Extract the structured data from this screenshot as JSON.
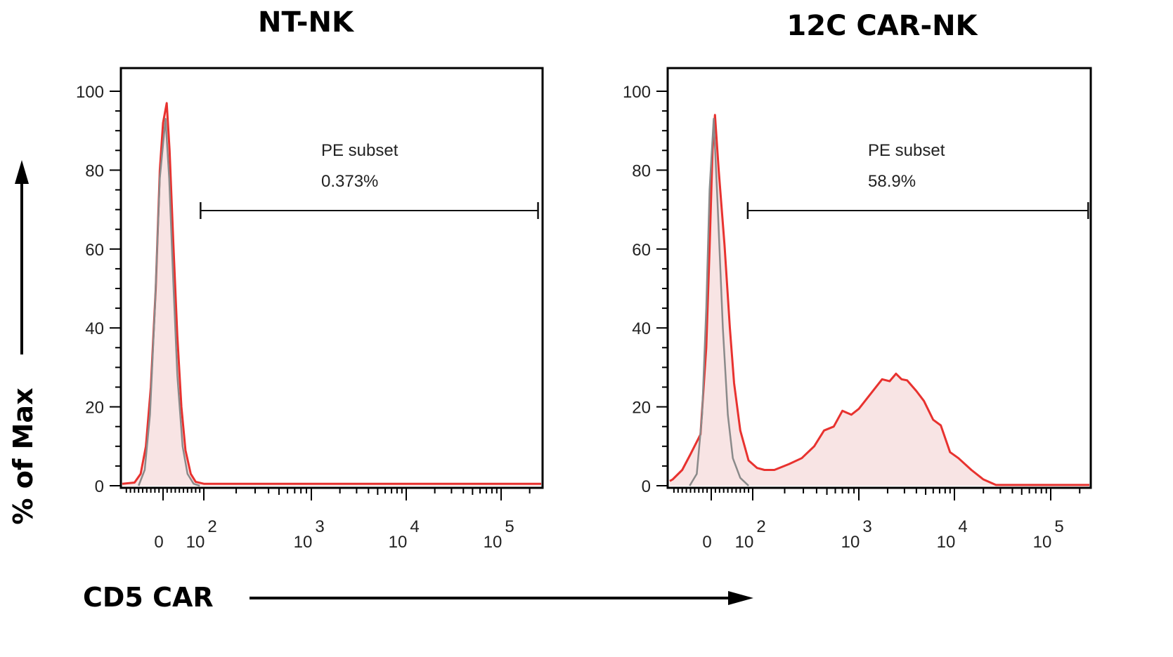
{
  "chart_data": [
    {
      "type": "histogram",
      "title": "NT-NK",
      "xlabel": "CD5 CAR",
      "ylabel": "% of Max",
      "x_scale": "biexponential",
      "x_ticks": [
        {
          "value": 0,
          "label": "0"
        },
        {
          "value": 100,
          "base": "10",
          "exp": "2"
        },
        {
          "value": 1000,
          "base": "10",
          "exp": "3"
        },
        {
          "value": 10000,
          "base": "10",
          "exp": "4"
        },
        {
          "value": 100000,
          "base": "10",
          "exp": "5"
        }
      ],
      "y_ticks": [
        0,
        20,
        40,
        60,
        80,
        100
      ],
      "ylim": [
        0,
        100
      ],
      "gate": {
        "name": "PE subset",
        "value": "0.373%",
        "range": [
          92,
          245000
        ]
      },
      "series": [
        {
          "color": "#e8322f",
          "fill": "#f8e4e4",
          "points": [
            [
              -100,
              0.5
            ],
            [
              -70,
              0.8
            ],
            [
              -55,
              3
            ],
            [
              -42,
              10
            ],
            [
              -30,
              25
            ],
            [
              -18,
              50
            ],
            [
              -8,
              80
            ],
            [
              0,
              92
            ],
            [
              9,
              97
            ],
            [
              16,
              85
            ],
            [
              25,
              62
            ],
            [
              35,
              38
            ],
            [
              45,
              20
            ],
            [
              55,
              9
            ],
            [
              68,
              3
            ],
            [
              80,
              1
            ],
            [
              100,
              0.5
            ],
            [
              275000,
              0.5
            ]
          ]
        },
        {
          "color": "#8a8a8a",
          "fill": "none",
          "points": [
            [
              -60,
              0
            ],
            [
              -45,
              4
            ],
            [
              -32,
              18
            ],
            [
              -20,
              45
            ],
            [
              -8,
              78
            ],
            [
              6,
              93
            ],
            [
              15,
              78
            ],
            [
              25,
              52
            ],
            [
              35,
              28
            ],
            [
              48,
              10
            ],
            [
              60,
              3
            ],
            [
              75,
              0.5
            ],
            [
              90,
              0
            ]
          ]
        }
      ]
    },
    {
      "type": "histogram",
      "title": "12C CAR-NK",
      "xlabel": "CD5 CAR",
      "ylabel": "% of Max",
      "x_scale": "biexponential",
      "x_ticks": [
        {
          "value": 0,
          "label": "0"
        },
        {
          "value": 100,
          "base": "10",
          "exp": "2"
        },
        {
          "value": 1000,
          "base": "10",
          "exp": "3"
        },
        {
          "value": 10000,
          "base": "10",
          "exp": "4"
        },
        {
          "value": 100000,
          "base": "10",
          "exp": "5"
        }
      ],
      "y_ticks": [
        0,
        20,
        40,
        60,
        80,
        100
      ],
      "ylim": [
        0,
        100
      ],
      "gate": {
        "name": "PE subset",
        "value": "58.9%",
        "range": [
          88,
          245000
        ]
      },
      "series": [
        {
          "color": "#e8322f",
          "fill": "#f8e4e4",
          "points": [
            [
              -100,
              1.2
            ],
            [
              -93,
              1.6
            ],
            [
              -70,
              4
            ],
            [
              -50,
              8
            ],
            [
              -26,
              13
            ],
            [
              -12,
              35
            ],
            [
              -4,
              60
            ],
            [
              3,
              85
            ],
            [
              9,
              94
            ],
            [
              18,
              80
            ],
            [
              32,
              61
            ],
            [
              45,
              40
            ],
            [
              55,
              26
            ],
            [
              70,
              14
            ],
            [
              90,
              6.4
            ],
            [
              110,
              4.5
            ],
            [
              129,
              4
            ],
            [
              160,
              4
            ],
            [
              220,
              5.5
            ],
            [
              290,
              7
            ],
            [
              380,
              10
            ],
            [
              470,
              14
            ],
            [
              580,
              15
            ],
            [
              700,
              19
            ],
            [
              850,
              18
            ],
            [
              1000,
              19.5
            ],
            [
              1300,
              23
            ],
            [
              1750,
              27
            ],
            [
              2100,
              26.5
            ],
            [
              2450,
              28.4
            ],
            [
              2800,
              27
            ],
            [
              3200,
              26.7
            ],
            [
              4000,
              24
            ],
            [
              4800,
              21.5
            ],
            [
              6000,
              16.7
            ],
            [
              7200,
              15.3
            ],
            [
              9000,
              8.5
            ],
            [
              11000,
              7
            ],
            [
              15000,
              4
            ],
            [
              20000,
              1.6
            ],
            [
              27000,
              0.2
            ],
            [
              275000,
              0.2
            ]
          ]
        },
        {
          "color": "#8a8a8a",
          "fill": "none",
          "points": [
            [
              -52,
              0
            ],
            [
              -35,
              3
            ],
            [
              -22,
              18
            ],
            [
              -12,
              45
            ],
            [
              -4,
              75
            ],
            [
              6,
              93
            ],
            [
              15,
              72
            ],
            [
              28,
              40
            ],
            [
              40,
              18
            ],
            [
              52,
              7
            ],
            [
              70,
              2
            ],
            [
              90,
              0
            ]
          ]
        }
      ]
    }
  ]
}
